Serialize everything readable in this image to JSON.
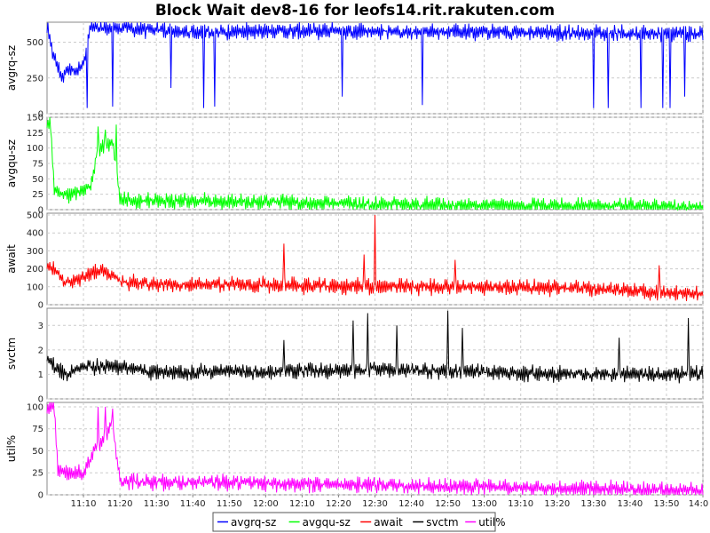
{
  "chart_data": {
    "type": "line",
    "title": "Block Wait dev8-16 for leofs14.rit.rakuten.com",
    "x_axis": {
      "start": "11:00",
      "end": "14:00",
      "ticks": [
        "11:10",
        "11:20",
        "11:30",
        "11:40",
        "11:50",
        "12:00",
        "12:10",
        "12:20",
        "12:30",
        "12:40",
        "12:50",
        "13:00",
        "13:10",
        "13:20",
        "13:30",
        "13:40",
        "13:50",
        "14:0"
      ],
      "grid": true
    },
    "legend": {
      "placement": "bottom-center",
      "entries": [
        "avgrq-sz",
        "avgqu-sz",
        "await",
        "svctm",
        "util%"
      ]
    },
    "panels": [
      {
        "name": "avgrq-sz",
        "ylabel": "avgrq-sz",
        "color": "#0000ff",
        "ylim": [
          0,
          640
        ],
        "yticks": [
          "0",
          "250",
          "500"
        ],
        "ytick_values": [
          0,
          250,
          500
        ],
        "grid": true,
        "profile": [
          [
            "11:00",
            610
          ],
          [
            "11:02",
            380
          ],
          [
            "11:04",
            250
          ],
          [
            "11:06",
            320
          ],
          [
            "11:08",
            300
          ],
          [
            "11:10",
            350
          ],
          [
            "11:12",
            600
          ],
          [
            "11:20",
            600
          ],
          [
            "11:40",
            570
          ],
          [
            "12:00",
            580
          ],
          [
            "12:30",
            575
          ],
          [
            "13:00",
            570
          ],
          [
            "13:30",
            565
          ],
          [
            "14:00",
            560
          ]
        ],
        "spikes": [
          [
            "11:11",
            40
          ],
          [
            "11:18",
            50
          ],
          [
            "11:34",
            180
          ],
          [
            "11:43",
            40
          ],
          [
            "11:46",
            50
          ],
          [
            "12:21",
            120
          ],
          [
            "12:43",
            60
          ],
          [
            "13:30",
            40
          ],
          [
            "13:34",
            40
          ],
          [
            "13:43",
            40
          ],
          [
            "13:49",
            40
          ],
          [
            "13:51",
            40
          ],
          [
            "13:55",
            120
          ]
        ]
      },
      {
        "name": "avgqu-sz",
        "ylabel": "avgqu-sz",
        "color": "#00ff00",
        "ylim": [
          0,
          150
        ],
        "yticks": [
          "0",
          "25",
          "50",
          "75",
          "100",
          "125",
          "150"
        ],
        "ytick_values": [
          0,
          25,
          50,
          75,
          100,
          125,
          150
        ],
        "grid": true,
        "profile": [
          [
            "11:00",
            140
          ],
          [
            "11:01",
            135
          ],
          [
            "11:02",
            30
          ],
          [
            "11:05",
            25
          ],
          [
            "11:10",
            30
          ],
          [
            "11:12",
            40
          ],
          [
            "11:14",
            100
          ],
          [
            "11:18",
            110
          ],
          [
            "11:20",
            15
          ],
          [
            "12:00",
            12
          ],
          [
            "12:30",
            8
          ],
          [
            "13:00",
            6
          ],
          [
            "13:30",
            5
          ],
          [
            "14:00",
            4
          ]
        ],
        "spikes": [
          [
            "11:14",
            135
          ],
          [
            "11:16",
            130
          ],
          [
            "11:19",
            138
          ]
        ]
      },
      {
        "name": "await",
        "ylabel": "await",
        "color": "#ff0000",
        "ylim": [
          0,
          510
        ],
        "yticks": [
          "0",
          "100",
          "200",
          "300",
          "400",
          "500"
        ],
        "ytick_values": [
          0,
          100,
          200,
          300,
          400,
          500
        ],
        "grid": true,
        "profile": [
          [
            "11:00",
            220
          ],
          [
            "11:02",
            190
          ],
          [
            "11:05",
            120
          ],
          [
            "11:10",
            150
          ],
          [
            "11:15",
            200
          ],
          [
            "11:20",
            130
          ],
          [
            "11:30",
            110
          ],
          [
            "12:00",
            110
          ],
          [
            "12:30",
            100
          ],
          [
            "13:00",
            100
          ],
          [
            "13:30",
            90
          ],
          [
            "14:00",
            60
          ]
        ],
        "spikes": [
          [
            "12:05",
            340
          ],
          [
            "12:27",
            280
          ],
          [
            "12:30",
            500
          ],
          [
            "12:52",
            250
          ],
          [
            "13:48",
            220
          ]
        ]
      },
      {
        "name": "svctm",
        "ylabel": "svctm",
        "color": "#000000",
        "ylim": [
          0,
          3.7
        ],
        "yticks": [
          "0",
          "1",
          "2",
          "3"
        ],
        "ytick_values": [
          0,
          1,
          2,
          3
        ],
        "grid": true,
        "profile": [
          [
            "11:00",
            1.6
          ],
          [
            "11:05",
            1.0
          ],
          [
            "11:10",
            1.3
          ],
          [
            "11:20",
            1.3
          ],
          [
            "11:30",
            1.1
          ],
          [
            "12:00",
            1.1
          ],
          [
            "12:30",
            1.2
          ],
          [
            "13:00",
            1.1
          ],
          [
            "13:30",
            1.0
          ],
          [
            "14:00",
            1.0
          ]
        ],
        "spikes": [
          [
            "12:05",
            2.4
          ],
          [
            "12:24",
            3.2
          ],
          [
            "12:28",
            3.5
          ],
          [
            "12:36",
            3.0
          ],
          [
            "12:50",
            3.6
          ],
          [
            "12:54",
            2.9
          ],
          [
            "13:37",
            2.5
          ],
          [
            "13:56",
            3.3
          ]
        ]
      },
      {
        "name": "util%",
        "ylabel": "util%",
        "color": "#ff00ff",
        "ylim": [
          0,
          105
        ],
        "yticks": [
          "0",
          "25",
          "50",
          "75",
          "100"
        ],
        "ytick_values": [
          0,
          25,
          50,
          75,
          100
        ],
        "grid": true,
        "profile": [
          [
            "11:00",
            100
          ],
          [
            "11:02",
            100
          ],
          [
            "11:03",
            25
          ],
          [
            "11:10",
            25
          ],
          [
            "11:13",
            50
          ],
          [
            "11:18",
            80
          ],
          [
            "11:20",
            15
          ],
          [
            "12:00",
            13
          ],
          [
            "12:30",
            11
          ],
          [
            "13:00",
            9
          ],
          [
            "13:30",
            7
          ],
          [
            "14:00",
            5
          ]
        ],
        "spikes": [
          [
            "11:14",
            100
          ],
          [
            "11:16",
            100
          ],
          [
            "11:18",
            98
          ]
        ]
      }
    ]
  }
}
